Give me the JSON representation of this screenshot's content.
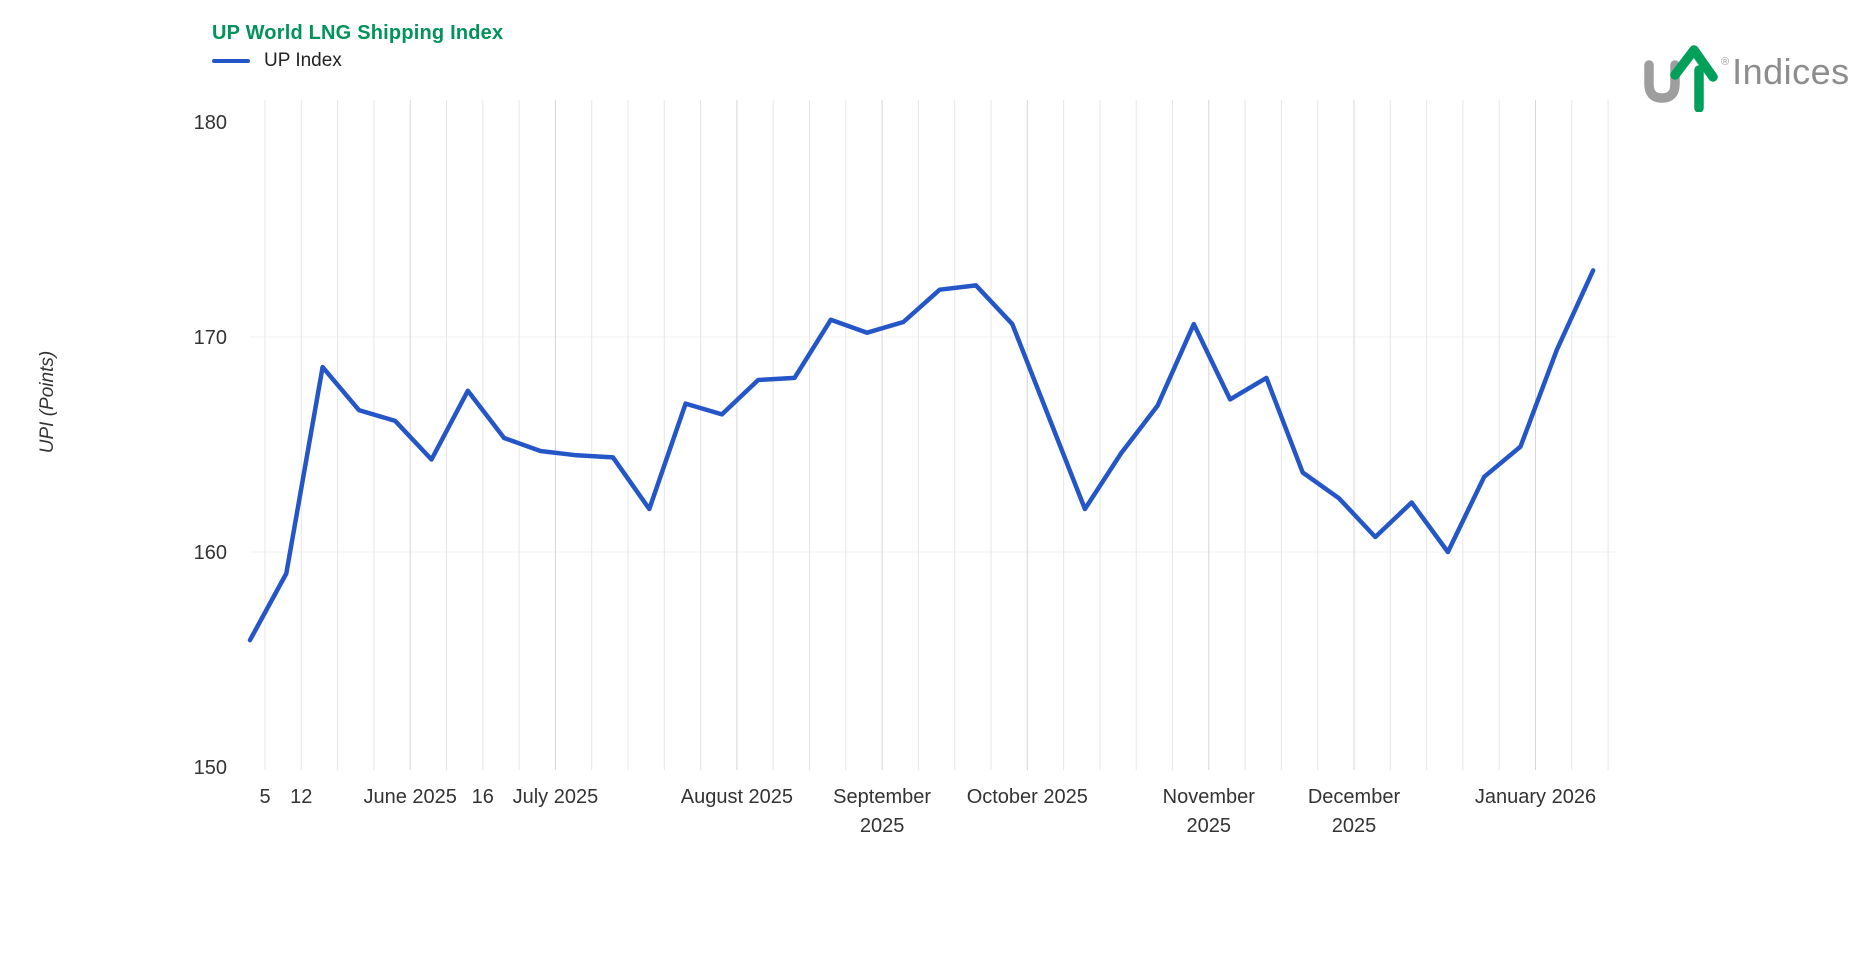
{
  "title": "UP World LNG Shipping Index",
  "legend": {
    "label": "UP Index"
  },
  "logo": {
    "brand": "Indices",
    "registered": "®",
    "mark": "up-arrow-logo"
  },
  "y_axis": {
    "label": "UPI (Points)",
    "ticks": [
      180,
      170,
      160,
      150
    ],
    "min": 150,
    "max": 180,
    "h_gridline_values": [
      170,
      160
    ]
  },
  "x_axis": {
    "n_weekly_slots": 38,
    "tick_labels": [
      {
        "index": 0,
        "label": "5",
        "two_line": false,
        "month_line": false
      },
      {
        "index": 1,
        "label": "12",
        "two_line": false,
        "month_line": false
      },
      {
        "index": 4,
        "label": "June 2025",
        "two_line": false,
        "month_line": true
      },
      {
        "index": 6,
        "label": "16",
        "two_line": false,
        "month_line": false
      },
      {
        "index": 8,
        "label": "July 2025",
        "two_line": false,
        "month_line": true
      },
      {
        "index": 13,
        "label": "August 2025",
        "two_line": false,
        "month_line": true
      },
      {
        "index": 17,
        "label": "September 2025",
        "two_line": true,
        "month_line": true
      },
      {
        "index": 21,
        "label": "October 2025",
        "two_line": false,
        "month_line": true
      },
      {
        "index": 26,
        "label": "November 2025",
        "two_line": true,
        "month_line": true
      },
      {
        "index": 30,
        "label": "December 2025",
        "two_line": true,
        "month_line": true
      },
      {
        "index": 35,
        "label": "January 2026",
        "two_line": false,
        "month_line": true
      }
    ]
  },
  "chart_data": {
    "type": "line",
    "title": "UP World LNG Shipping Index",
    "ylabel": "UPI (Points)",
    "ylim": [
      150,
      180
    ],
    "y_ticks": [
      150,
      160,
      170,
      180
    ],
    "legend_position": "top-left",
    "grid": "weekly vertical gridlines; very faint horizontal lines at 160 and 170",
    "x_description": "weekly observations, May 2025 through mid-January 2026",
    "x_tick_labels": [
      "5",
      "12",
      "June 2025",
      "16",
      "July 2025",
      "August 2025",
      "September 2025",
      "October 2025",
      "November 2025",
      "December 2025",
      "January 2026"
    ],
    "series": [
      {
        "name": "UP Index",
        "color": "#2456C8",
        "values": [
          155.9,
          159.0,
          168.6,
          166.6,
          166.1,
          164.3,
          167.5,
          165.3,
          164.7,
          164.5,
          164.4,
          162.0,
          166.9,
          166.4,
          168.0,
          168.1,
          170.8,
          170.2,
          170.7,
          172.2,
          172.4,
          170.6,
          166.3,
          162.0,
          164.6,
          166.8,
          170.6,
          167.1,
          168.1,
          163.7,
          162.5,
          160.7,
          162.3,
          160.0,
          163.5,
          164.9,
          169.4,
          173.1
        ]
      }
    ]
  },
  "colors": {
    "title_green": "#00935A",
    "line_blue": "#2456C8",
    "logo_green": "#00A05B",
    "logo_gray": "#9e9e9e",
    "axis_text": "#333333",
    "gridline": "#e7e7e7",
    "month_gridline": "#d6d6d6",
    "h_gridline": "#f0f0f0"
  }
}
